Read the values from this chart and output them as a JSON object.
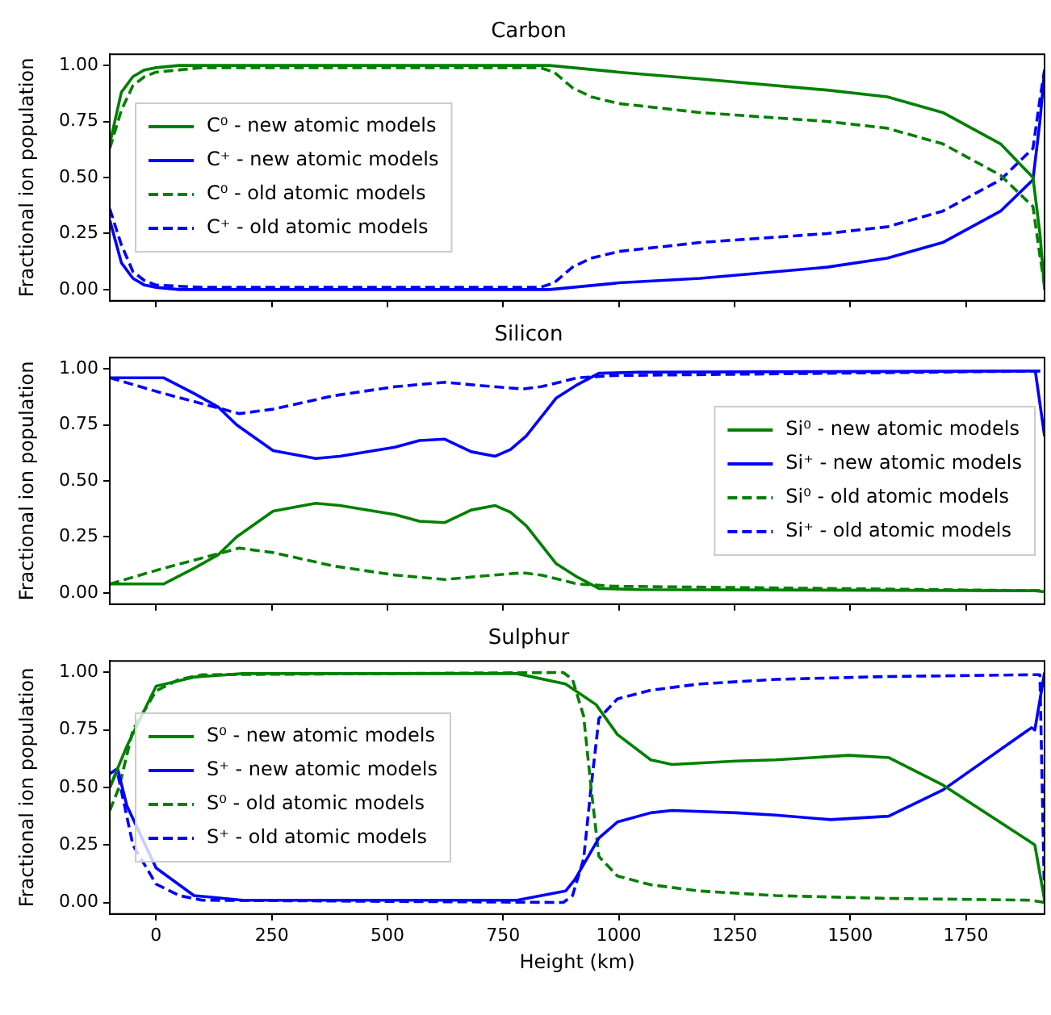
{
  "chart_data": [
    {
      "type": "line",
      "title": "Carbon",
      "ylabel": "Fractional ion population",
      "xlim": [
        -100,
        1920
      ],
      "xticks": [
        0,
        250,
        500,
        750,
        1000,
        1250,
        1500,
        1750
      ],
      "ylim": [
        -0.05,
        1.05
      ],
      "yticks": [
        {
          "value": 0,
          "label": "0.00"
        },
        {
          "value": 0.25,
          "label": "0.25"
        },
        {
          "value": 0.5,
          "label": "0.50"
        },
        {
          "value": 0.75,
          "label": "0.75"
        },
        {
          "value": 1,
          "label": "1.00"
        }
      ],
      "grid": false,
      "legend": "center left",
      "tick_labels": "y",
      "marker": "none",
      "series": [
        {
          "name": "C⁰ - new atomic models",
          "color": "#008000",
          "line_style": "solid",
          "x": [
            -100,
            -75,
            -50,
            -25,
            0,
            50,
            850,
            900,
            1000,
            1175,
            1450,
            1580,
            1700,
            1825,
            1895,
            1910,
            1920
          ],
          "values": [
            0.65,
            0.88,
            0.95,
            0.98,
            0.99,
            1.0,
            1.0,
            0.99,
            0.97,
            0.94,
            0.89,
            0.86,
            0.79,
            0.65,
            0.5,
            0.25,
            0.0
          ]
        },
        {
          "name": "C⁺ - new atomic models",
          "color": "#0000ff",
          "line_style": "solid",
          "x": [
            -100,
            -75,
            -50,
            -25,
            0,
            50,
            850,
            900,
            1000,
            1175,
            1450,
            1580,
            1700,
            1825,
            1895,
            1910,
            1920
          ],
          "values": [
            0.31,
            0.12,
            0.05,
            0.02,
            0.01,
            0.0,
            0.0,
            0.01,
            0.03,
            0.05,
            0.1,
            0.14,
            0.21,
            0.35,
            0.49,
            0.75,
            0.98
          ]
        },
        {
          "name": "C⁰ - old atomic models",
          "color": "#008000",
          "line_style": "dashed",
          "x": [
            -100,
            -75,
            -50,
            -25,
            0,
            50,
            100,
            830,
            860,
            900,
            940,
            1000,
            1175,
            1450,
            1580,
            1700,
            1825,
            1895,
            1910,
            1920
          ],
          "values": [
            0.63,
            0.8,
            0.91,
            0.95,
            0.97,
            0.98,
            0.99,
            0.99,
            0.97,
            0.9,
            0.86,
            0.83,
            0.79,
            0.75,
            0.72,
            0.65,
            0.51,
            0.37,
            0.15,
            0.02
          ]
        },
        {
          "name": "C⁺ - old atomic models",
          "color": "#0000ff",
          "line_style": "dashed",
          "x": [
            -100,
            -75,
            -50,
            -25,
            0,
            100,
            830,
            860,
            900,
            940,
            1000,
            1175,
            1450,
            1580,
            1700,
            1825,
            1895,
            1910,
            1920
          ],
          "values": [
            0.36,
            0.2,
            0.08,
            0.04,
            0.02,
            0.01,
            0.01,
            0.03,
            0.1,
            0.14,
            0.17,
            0.21,
            0.25,
            0.28,
            0.35,
            0.49,
            0.63,
            0.85,
            0.98
          ]
        }
      ]
    },
    {
      "type": "line",
      "title": "Silicon",
      "ylabel": "Fractional ion population",
      "xlim": [
        -100,
        1920
      ],
      "xticks": [
        0,
        250,
        500,
        750,
        1000,
        1250,
        1500,
        1750
      ],
      "ylim": [
        -0.05,
        1.05
      ],
      "yticks": [
        {
          "value": 0,
          "label": "0.00"
        },
        {
          "value": 0.25,
          "label": "0.25"
        },
        {
          "value": 0.5,
          "label": "0.50"
        },
        {
          "value": 0.75,
          "label": "0.75"
        },
        {
          "value": 1,
          "label": "1.00"
        }
      ],
      "grid": false,
      "legend": "center right",
      "tick_labels": "y",
      "marker": "none",
      "series": [
        {
          "name": "Si⁰ - new atomic models",
          "color": "#008000",
          "line_style": "solid",
          "x": [
            -100,
            -37,
            16,
            82,
            134,
            174,
            253,
            345,
            397,
            516,
            569,
            624,
            681,
            733,
            766,
            800,
            865,
            911,
            957,
            1043,
            1900,
            1920
          ],
          "values": [
            0.04,
            0.04,
            0.04,
            0.11,
            0.17,
            0.25,
            0.365,
            0.4,
            0.39,
            0.35,
            0.32,
            0.314,
            0.37,
            0.39,
            0.36,
            0.3,
            0.13,
            0.07,
            0.02,
            0.015,
            0.01,
            0.005
          ]
        },
        {
          "name": "Si⁺ - new atomic models",
          "color": "#0000ff",
          "line_style": "solid",
          "x": [
            -100,
            -37,
            16,
            82,
            134,
            174,
            253,
            345,
            397,
            516,
            569,
            624,
            681,
            733,
            766,
            800,
            865,
            911,
            957,
            1043,
            1900,
            1920
          ],
          "values": [
            0.96,
            0.96,
            0.96,
            0.89,
            0.83,
            0.75,
            0.635,
            0.6,
            0.61,
            0.65,
            0.68,
            0.686,
            0.63,
            0.61,
            0.64,
            0.7,
            0.87,
            0.93,
            0.98,
            0.985,
            0.99,
            0.7
          ]
        },
        {
          "name": "Si⁰ - old atomic models",
          "color": "#008000",
          "line_style": "dashed",
          "x": [
            -100,
            16,
            180,
            253,
            384,
            516,
            624,
            703,
            793,
            832,
            911,
            990,
            1912,
            1920
          ],
          "values": [
            0.04,
            0.11,
            0.2,
            0.18,
            0.12,
            0.08,
            0.06,
            0.075,
            0.09,
            0.08,
            0.04,
            0.03,
            0.01,
            0.01
          ]
        },
        {
          "name": "Si⁺ - old atomic models",
          "color": "#0000ff",
          "line_style": "dashed",
          "x": [
            -100,
            16,
            180,
            253,
            384,
            516,
            624,
            703,
            793,
            832,
            911,
            990,
            1912,
            1920
          ],
          "values": [
            0.96,
            0.89,
            0.8,
            0.82,
            0.88,
            0.92,
            0.94,
            0.925,
            0.91,
            0.92,
            0.96,
            0.97,
            0.99,
            0.99
          ]
        }
      ]
    },
    {
      "type": "line",
      "title": "Sulphur",
      "xlabel": "Height (km)",
      "ylabel": "Fractional ion population",
      "xlim": [
        -100,
        1920
      ],
      "xticks": [
        0,
        250,
        500,
        750,
        1000,
        1250,
        1500,
        1750
      ],
      "ylim": [
        -0.05,
        1.05
      ],
      "yticks": [
        {
          "value": 0,
          "label": "0.00"
        },
        {
          "value": 0.25,
          "label": "0.25"
        },
        {
          "value": 0.5,
          "label": "0.50"
        },
        {
          "value": 0.75,
          "label": "0.75"
        },
        {
          "value": 1,
          "label": "1.00"
        }
      ],
      "grid": false,
      "legend": "center left",
      "marker": "none",
      "series": [
        {
          "name": "S⁰ - new atomic models",
          "color": "#008000",
          "line_style": "solid",
          "x": [
            -100,
            -63,
            0,
            82,
            187,
            780,
            885,
            951,
            997,
            1069,
            1115,
            1254,
            1339,
            1497,
            1583,
            1701,
            1892,
            1899,
            1920
          ],
          "values": [
            0.5,
            0.68,
            0.94,
            0.98,
            0.995,
            0.995,
            0.95,
            0.86,
            0.73,
            0.62,
            0.6,
            0.615,
            0.62,
            0.64,
            0.63,
            0.51,
            0.26,
            0.25,
            0.01
          ]
        },
        {
          "name": "S⁺ - new atomic models",
          "color": "#0000ff",
          "line_style": "solid",
          "x": [
            -100,
            -83,
            -63,
            0,
            82,
            187,
            780,
            885,
            905,
            957,
            997,
            1069,
            1115,
            1254,
            1339,
            1458,
            1583,
            1701,
            1892,
            1899,
            1920
          ],
          "values": [
            0.5,
            0.58,
            0.42,
            0.15,
            0.03,
            0.01,
            0.01,
            0.05,
            0.1,
            0.28,
            0.35,
            0.39,
            0.4,
            0.39,
            0.38,
            0.36,
            0.375,
            0.49,
            0.76,
            0.75,
            1.0
          ]
        },
        {
          "name": "S⁰ - old atomic models",
          "color": "#008000",
          "line_style": "dashed",
          "x": [
            -100,
            -80,
            -50,
            0,
            50,
            100,
            880,
            900,
            924,
            940,
            957,
            997,
            1069,
            1175,
            1339,
            1570,
            1890,
            1920
          ],
          "values": [
            0.4,
            0.5,
            0.75,
            0.92,
            0.97,
            0.99,
            1.0,
            0.97,
            0.81,
            0.5,
            0.2,
            0.115,
            0.077,
            0.05,
            0.03,
            0.018,
            0.01,
            0.0
          ]
        },
        {
          "name": "S⁺ - old atomic models",
          "color": "#0000ff",
          "line_style": "dashed",
          "x": [
            -100,
            -85,
            -50,
            0,
            50,
            100,
            880,
            900,
            924,
            940,
            957,
            997,
            1069,
            1175,
            1339,
            1570,
            1890,
            1910,
            1920
          ],
          "values": [
            0.56,
            0.58,
            0.25,
            0.08,
            0.03,
            0.01,
            0.0,
            0.03,
            0.19,
            0.5,
            0.8,
            0.885,
            0.923,
            0.95,
            0.97,
            0.982,
            0.99,
            0.99,
            0.0
          ]
        }
      ]
    }
  ]
}
